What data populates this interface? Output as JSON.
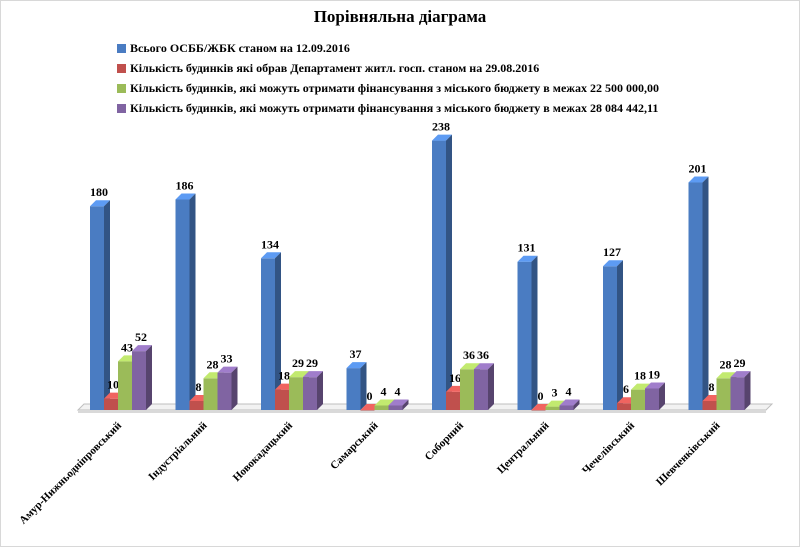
{
  "chart_data": {
    "type": "bar",
    "title": "Порівняльна діаграма",
    "categories": [
      "Амур-Нижньодніпровський",
      "Індустріальний",
      "Новокадацький",
      "Самарський",
      "Соборний",
      "Центральний",
      "Чечелівський",
      "Шевченківський"
    ],
    "series": [
      {
        "name": "Всього ОСББ/ЖБК станом на 12.09.2016",
        "color": "#4a7cc2",
        "values": [
          180,
          186,
          134,
          37,
          238,
          131,
          127,
          201
        ]
      },
      {
        "name": "Кількість будинків які обрав Департамент житл. госп. станом на 29.08.2016",
        "color": "#c0504d",
        "values": [
          10,
          8,
          18,
          0,
          16,
          0,
          6,
          8
        ]
      },
      {
        "name": "Кількість будинків, які можуть отримати фінансування з міського бюджету в межах 22 500 000,00",
        "color": "#9bbb59",
        "values": [
          43,
          28,
          29,
          4,
          36,
          3,
          18,
          28
        ]
      },
      {
        "name": "Кількість будинків, які можуть отримати фінансування з міського бюджету в межах 28 084 442,11",
        "color": "#8064a2",
        "values": [
          52,
          33,
          29,
          4,
          36,
          4,
          19,
          29
        ]
      }
    ],
    "ylim": [
      0,
      250
    ],
    "grid": false,
    "legend_position": "top"
  }
}
